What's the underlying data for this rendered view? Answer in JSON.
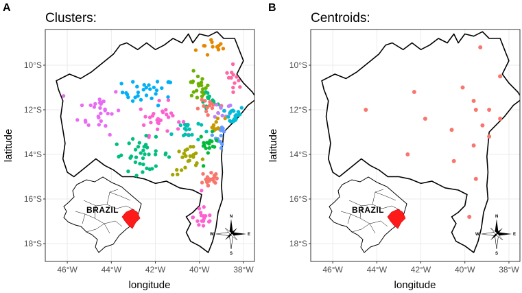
{
  "panels": [
    {
      "id": "A",
      "letter": "A",
      "title": "Clusters:",
      "inset_label": "BRAZIL",
      "compass": {
        "north": "N",
        "south": "S",
        "east": "E",
        "west": "W"
      }
    },
    {
      "id": "B",
      "letter": "B",
      "title": "Centroids:",
      "inset_label": "BRAZIL",
      "compass": {
        "north": "N",
        "south": "S",
        "east": "E",
        "west": "W"
      }
    }
  ],
  "axes": {
    "xlabel": "longitude",
    "ylabel": "latitude",
    "x_ticks": [
      {
        "value": -46,
        "label": "46°W"
      },
      {
        "value": -44,
        "label": "44°W"
      },
      {
        "value": -42,
        "label": "42°W"
      },
      {
        "value": -40,
        "label": "40°W"
      },
      {
        "value": -38,
        "label": "38°W"
      }
    ],
    "y_ticks": [
      {
        "value": -10,
        "label": "10°S"
      },
      {
        "value": -12,
        "label": "12°S"
      },
      {
        "value": -14,
        "label": "14°S"
      },
      {
        "value": -16,
        "label": "16°S"
      },
      {
        "value": -18,
        "label": "18°S"
      }
    ],
    "xlim": [
      -47,
      -37.5
    ],
    "ylim": [
      -18.8,
      -8.4
    ]
  },
  "colors": {
    "centroid": "#f8766d",
    "highlight": "#ff1a1a",
    "cluster_palette": [
      "#f8766d",
      "#e58700",
      "#c99800",
      "#a3a500",
      "#6bb100",
      "#00ba38",
      "#00bf7d",
      "#00c0af",
      "#00bcd8",
      "#00b0f6",
      "#619cff",
      "#b983ff",
      "#e76bf3",
      "#fd61d1",
      "#ff67a4"
    ]
  },
  "state_boundary": [
    [
      -43.3,
      -9.0
    ],
    [
      -42.8,
      -9.3
    ],
    [
      -42.4,
      -9.0
    ],
    [
      -42.0,
      -9.3
    ],
    [
      -41.6,
      -9.1
    ],
    [
      -41.2,
      -8.8
    ],
    [
      -40.8,
      -9.0
    ],
    [
      -40.5,
      -8.6
    ],
    [
      -40.3,
      -9.0
    ],
    [
      -40.0,
      -8.6
    ],
    [
      -39.6,
      -8.7
    ],
    [
      -39.2,
      -8.5
    ],
    [
      -38.9,
      -8.8
    ],
    [
      -38.4,
      -8.8
    ],
    [
      -38.2,
      -9.3
    ],
    [
      -38.0,
      -9.8
    ],
    [
      -38.3,
      -10.4
    ],
    [
      -38.0,
      -10.8
    ],
    [
      -37.6,
      -11.2
    ],
    [
      -37.4,
      -11.5
    ],
    [
      -37.8,
      -11.8
    ],
    [
      -38.2,
      -12.3
    ],
    [
      -38.6,
      -12.7
    ],
    [
      -38.9,
      -13.0
    ],
    [
      -38.95,
      -13.6
    ],
    [
      -39.0,
      -14.1
    ],
    [
      -38.95,
      -14.8
    ],
    [
      -39.0,
      -15.4
    ],
    [
      -38.95,
      -16.0
    ],
    [
      -39.15,
      -16.6
    ],
    [
      -39.25,
      -17.3
    ],
    [
      -39.4,
      -17.9
    ],
    [
      -39.6,
      -18.4
    ],
    [
      -40.0,
      -18.1
    ],
    [
      -40.4,
      -17.9
    ],
    [
      -40.6,
      -17.5
    ],
    [
      -40.4,
      -17.1
    ],
    [
      -40.6,
      -16.8
    ],
    [
      -40.3,
      -16.6
    ],
    [
      -40.0,
      -16.3
    ],
    [
      -39.9,
      -15.8
    ],
    [
      -40.3,
      -15.6
    ],
    [
      -40.9,
      -15.5
    ],
    [
      -41.5,
      -15.2
    ],
    [
      -42.0,
      -15.3
    ],
    [
      -42.5,
      -15.1
    ],
    [
      -43.0,
      -15.0
    ],
    [
      -43.5,
      -15.0
    ],
    [
      -43.9,
      -14.7
    ],
    [
      -44.3,
      -14.5
    ],
    [
      -44.7,
      -14.2
    ],
    [
      -45.2,
      -14.6
    ],
    [
      -45.7,
      -15.0
    ],
    [
      -46.0,
      -14.8
    ],
    [
      -46.2,
      -14.2
    ],
    [
      -46.1,
      -13.5
    ],
    [
      -46.2,
      -12.9
    ],
    [
      -46.3,
      -12.3
    ],
    [
      -46.2,
      -11.6
    ],
    [
      -46.4,
      -11.1
    ],
    [
      -46.5,
      -10.7
    ],
    [
      -45.9,
      -10.4
    ],
    [
      -45.4,
      -10.6
    ],
    [
      -44.9,
      -10.3
    ],
    [
      -44.4,
      -9.9
    ],
    [
      -43.9,
      -9.5
    ],
    [
      -43.6,
      -9.1
    ],
    [
      -43.3,
      -9.0
    ]
  ],
  "clusters": [
    {
      "id": 1,
      "color": "#e58700",
      "centroid": [
        -39.3,
        -9.2
      ],
      "spread": [
        0.7,
        0.4
      ],
      "n": 12
    },
    {
      "id": 2,
      "color": "#ff67a4",
      "centroid": [
        -38.4,
        -10.5
      ],
      "spread": [
        0.35,
        0.45
      ],
      "n": 12
    },
    {
      "id": 3,
      "color": "#00b0f6",
      "centroid": [
        -42.3,
        -11.2
      ],
      "spread": [
        1.0,
        0.5
      ],
      "n": 30
    },
    {
      "id": 4,
      "color": "#6bb100",
      "centroid": [
        -40.1,
        -11.0
      ],
      "spread": [
        0.45,
        0.5
      ],
      "n": 20
    },
    {
      "id": 5,
      "color": "#00bf7d",
      "centroid": [
        -39.6,
        -11.6
      ],
      "spread": [
        0.35,
        0.45
      ],
      "n": 12
    },
    {
      "id": 6,
      "color": "#f8766d",
      "centroid": [
        -39.5,
        -12.0
      ],
      "spread": [
        0.55,
        0.35
      ],
      "n": 14
    },
    {
      "id": 7,
      "color": "#b983ff",
      "centroid": [
        -38.9,
        -12.0
      ],
      "spread": [
        0.35,
        0.35
      ],
      "n": 12
    },
    {
      "id": 8,
      "color": "#00bcd8",
      "centroid": [
        -38.4,
        -12.4
      ],
      "spread": [
        0.35,
        0.55
      ],
      "n": 20
    },
    {
      "id": 9,
      "color": "#e76bf3",
      "centroid": [
        -44.5,
        -12.0
      ],
      "spread": [
        0.8,
        0.9
      ],
      "n": 28
    },
    {
      "id": 10,
      "color": "#fd61d1",
      "centroid": [
        -41.8,
        -12.4
      ],
      "spread": [
        0.8,
        0.6
      ],
      "n": 30
    },
    {
      "id": 11,
      "color": "#00c0af",
      "centroid": [
        -40.6,
        -12.9
      ],
      "spread": [
        0.55,
        0.45
      ],
      "n": 18
    },
    {
      "id": 12,
      "color": "#c99800",
      "centroid": [
        -39.2,
        -12.7
      ],
      "spread": [
        0.3,
        0.3
      ],
      "n": 10
    },
    {
      "id": 13,
      "color": "#619cff",
      "centroid": [
        -38.9,
        -13.2
      ],
      "spread": [
        0.3,
        0.4
      ],
      "n": 12
    },
    {
      "id": 14,
      "color": "#00ba38",
      "centroid": [
        -39.6,
        -13.6
      ],
      "spread": [
        0.35,
        0.45
      ],
      "n": 16
    },
    {
      "id": 15,
      "color": "#00bf7d",
      "centroid": [
        -42.6,
        -14.0
      ],
      "spread": [
        1.1,
        0.6
      ],
      "n": 36
    },
    {
      "id": 16,
      "color": "#a3a500",
      "centroid": [
        -40.5,
        -14.3
      ],
      "spread": [
        0.6,
        0.55
      ],
      "n": 24
    },
    {
      "id": 17,
      "color": "#f8766d",
      "centroid": [
        -39.5,
        -15.1
      ],
      "spread": [
        0.4,
        0.45
      ],
      "n": 20
    },
    {
      "id": 18,
      "color": "#fd61d1",
      "centroid": [
        -39.8,
        -16.8
      ],
      "spread": [
        0.4,
        0.6
      ],
      "n": 18
    }
  ]
}
